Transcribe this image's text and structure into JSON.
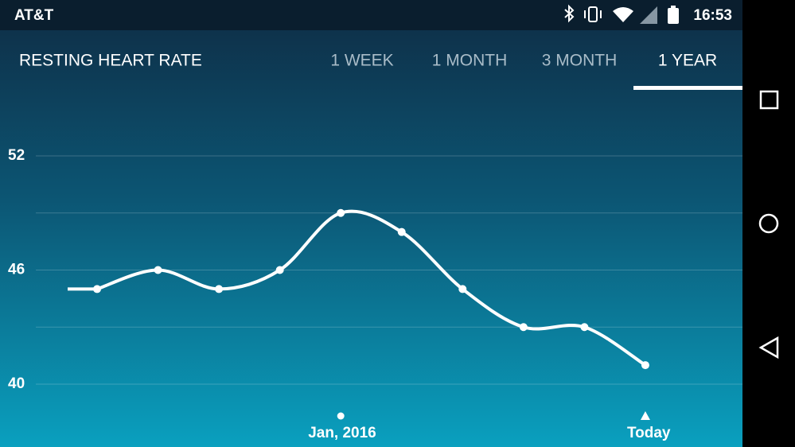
{
  "status_bar": {
    "carrier": "AT&T",
    "time": "16:53"
  },
  "header": {
    "title": "RESTING HEART RATE",
    "tabs": [
      "1 WEEK",
      "1 MONTH",
      "3 MONTH",
      "1 YEAR"
    ],
    "selected_tab": 3
  },
  "chart_data": {
    "type": "line",
    "categories": [
      null,
      null,
      null,
      null,
      "Jan, 2016",
      null,
      null,
      null,
      null,
      "Today"
    ],
    "values": [
      45,
      46,
      45,
      46,
      49,
      48,
      45,
      43,
      43,
      41
    ],
    "color": "#ffffff",
    "ylim": [
      40,
      52
    ],
    "yticks": [
      52,
      46,
      40
    ],
    "grid": true
  }
}
